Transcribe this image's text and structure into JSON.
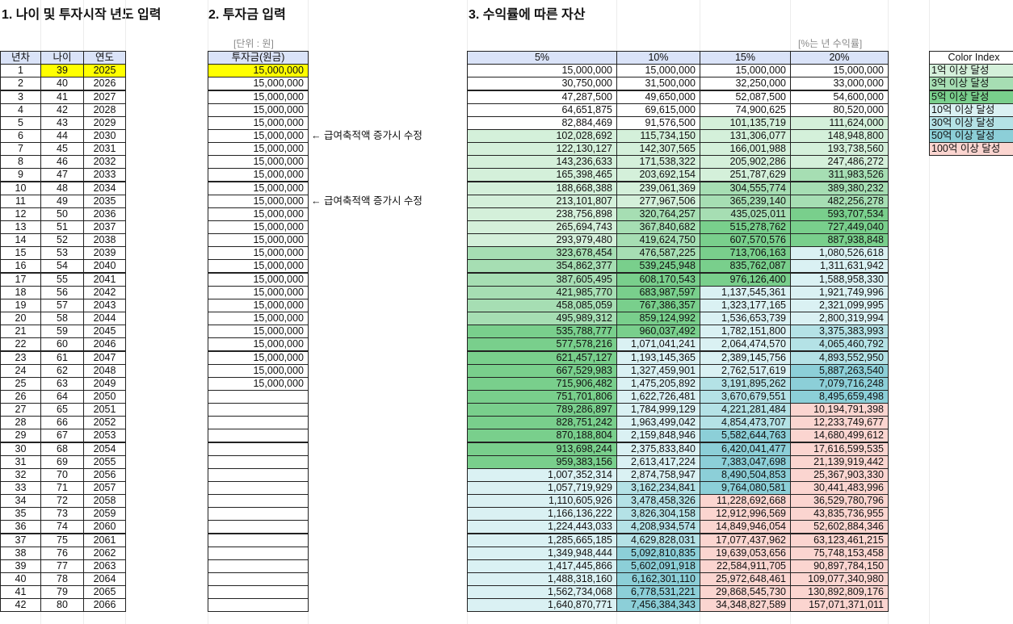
{
  "titles": {
    "section1": "1. 나이 및 투자시작 년도 입력",
    "section2": "2. 투자금 입력",
    "section3": "3. 수익률에 따른 자산"
  },
  "units": {
    "investment": "[단위 : 원]",
    "returns": "[%는 년 수익률]"
  },
  "table1": {
    "headers": [
      "년차",
      "나이",
      "연도"
    ],
    "years_elapsed": [
      1,
      2,
      3,
      4,
      5,
      6,
      7,
      8,
      9,
      10,
      11,
      12,
      13,
      14,
      15,
      16,
      17,
      18,
      19,
      20,
      21,
      22,
      23,
      24,
      25,
      26,
      27,
      28,
      29,
      30,
      31,
      32,
      33,
      34,
      35,
      36,
      37,
      38,
      39,
      40,
      41,
      42
    ],
    "ages": [
      39,
      40,
      41,
      42,
      43,
      44,
      45,
      46,
      47,
      48,
      49,
      50,
      51,
      52,
      53,
      54,
      55,
      56,
      57,
      58,
      59,
      60,
      61,
      62,
      63,
      64,
      65,
      66,
      67,
      68,
      69,
      70,
      71,
      72,
      73,
      74,
      75,
      76,
      77,
      78,
      79,
      80
    ],
    "calendar_years": [
      2025,
      2026,
      2027,
      2028,
      2029,
      2030,
      2031,
      2032,
      2033,
      2034,
      2035,
      2036,
      2037,
      2038,
      2039,
      2040,
      2041,
      2042,
      2043,
      2044,
      2045,
      2046,
      2047,
      2048,
      2049,
      2050,
      2051,
      2052,
      2053,
      2054,
      2055,
      2056,
      2057,
      2058,
      2059,
      2060,
      2061,
      2062,
      2063,
      2064,
      2065,
      2066
    ]
  },
  "table2": {
    "header": "투자금(원금)",
    "values": [
      "15,000,000",
      "15,000,000",
      "15,000,000",
      "15,000,000",
      "15,000,000",
      "15,000,000",
      "15,000,000",
      "15,000,000",
      "15,000,000",
      "15,000,000",
      "15,000,000",
      "15,000,000",
      "15,000,000",
      "15,000,000",
      "15,000,000",
      "15,000,000",
      "15,000,000",
      "15,000,000",
      "15,000,000",
      "15,000,000",
      "15,000,000",
      "15,000,000",
      "15,000,000",
      "15,000,000",
      "15,000,000"
    ],
    "notes": {
      "6": "← 급여축적액 증가시 수정",
      "11": "← 급여축적액 증가시 수정"
    }
  },
  "table3": {
    "headers": [
      "5%",
      "10%",
      "15%",
      "20%"
    ],
    "columns": [
      [
        "15,000,000",
        "30,750,000",
        "47,287,500",
        "64,651,875",
        "82,884,469",
        "102,028,692",
        "122,130,127",
        "143,236,633",
        "165,398,465",
        "188,668,388",
        "213,101,807",
        "238,756,898",
        "265,694,743",
        "293,979,480",
        "323,678,454",
        "354,862,377",
        "387,605,495",
        "421,985,770",
        "458,085,059",
        "495,989,312",
        "535,788,777",
        "577,578,216",
        "621,457,127",
        "667,529,983",
        "715,906,482",
        "751,701,806",
        "789,286,897",
        "828,751,242",
        "870,188,804",
        "913,698,244",
        "959,383,156",
        "1,007,352,314",
        "1,057,719,929",
        "1,110,605,926",
        "1,166,136,222",
        "1,224,443,033",
        "1,285,665,185",
        "1,349,948,444",
        "1,417,445,866",
        "1,488,318,160",
        "1,562,734,068",
        "1,640,870,771"
      ],
      [
        "15,000,000",
        "31,500,000",
        "49,650,000",
        "69,615,000",
        "91,576,500",
        "115,734,150",
        "142,307,565",
        "171,538,322",
        "203,692,154",
        "239,061,369",
        "277,967,506",
        "320,764,257",
        "367,840,682",
        "419,624,750",
        "476,587,225",
        "539,245,948",
        "608,170,543",
        "683,987,597",
        "767,386,357",
        "859,124,992",
        "960,037,492",
        "1,071,041,241",
        "1,193,145,365",
        "1,327,459,901",
        "1,475,205,892",
        "1,622,726,481",
        "1,784,999,129",
        "1,963,499,042",
        "2,159,848,946",
        "2,375,833,840",
        "2,613,417,224",
        "2,874,758,947",
        "3,162,234,841",
        "3,478,458,326",
        "3,826,304,158",
        "4,208,934,574",
        "4,629,828,031",
        "5,092,810,835",
        "5,602,091,918",
        "6,162,301,110",
        "6,778,531,221",
        "7,456,384,343"
      ],
      [
        "15,000,000",
        "32,250,000",
        "52,087,500",
        "74,900,625",
        "101,135,719",
        "131,306,077",
        "166,001,988",
        "205,902,286",
        "251,787,629",
        "304,555,774",
        "365,239,140",
        "435,025,011",
        "515,278,762",
        "607,570,576",
        "713,706,163",
        "835,762,087",
        "976,126,400",
        "1,137,545,361",
        "1,323,177,165",
        "1,536,653,739",
        "1,782,151,800",
        "2,064,474,570",
        "2,389,145,756",
        "2,762,517,619",
        "3,191,895,262",
        "3,670,679,551",
        "4,221,281,484",
        "4,854,473,707",
        "5,582,644,763",
        "6,420,041,477",
        "7,383,047,698",
        "8,490,504,853",
        "9,764,080,581",
        "11,228,692,668",
        "12,912,996,569",
        "14,849,946,054",
        "17,077,437,962",
        "19,639,053,656",
        "22,584,911,705",
        "25,972,648,461",
        "29,868,545,730",
        "34,348,827,589"
      ],
      [
        "15,000,000",
        "33,000,000",
        "54,600,000",
        "80,520,000",
        "111,624,000",
        "148,948,800",
        "193,738,560",
        "247,486,272",
        "311,983,526",
        "389,380,232",
        "482,256,278",
        "593,707,534",
        "727,449,040",
        "887,938,848",
        "1,080,526,618",
        "1,311,631,942",
        "1,588,958,330",
        "1,921,749,996",
        "2,321,099,995",
        "2,800,319,994",
        "3,375,383,993",
        "4,065,460,792",
        "4,893,552,950",
        "5,887,263,540",
        "7,079,716,248",
        "8,495,659,498",
        "10,194,791,398",
        "12,233,749,677",
        "14,680,499,612",
        "17,616,599,535",
        "21,139,919,442",
        "25,367,903,330",
        "30,441,483,996",
        "36,529,780,796",
        "43,835,736,955",
        "52,602,884,346",
        "63,123,461,215",
        "75,748,153,458",
        "90,897,784,150",
        "109,077,340,980",
        "130,892,809,176",
        "157,071,371,011"
      ]
    ]
  },
  "color_index": {
    "title": "Color Index",
    "items": [
      {
        "label": "1억 이상 달성",
        "threshold": 100000000,
        "color": "#d4f0da"
      },
      {
        "label": "3억 이상 달성",
        "threshold": 300000000,
        "color": "#a6deb3"
      },
      {
        "label": "5억 이상 달성",
        "threshold": 500000000,
        "color": "#79cf8c"
      },
      {
        "label": "10억 이상 달성",
        "threshold": 1000000000,
        "color": "#daf1f3"
      },
      {
        "label": "30억 이상 달성",
        "threshold": 3000000000,
        "color": "#b4e2e6"
      },
      {
        "label": "50억 이상 달성",
        "threshold": 5000000000,
        "color": "#8ccfd8"
      },
      {
        "label": "100억 이상 달성",
        "threshold": 10000000000,
        "color": "#fbd5d0"
      }
    ]
  },
  "colors": {
    "header": "#dae3f8",
    "input_highlight": "#ffff00"
  }
}
